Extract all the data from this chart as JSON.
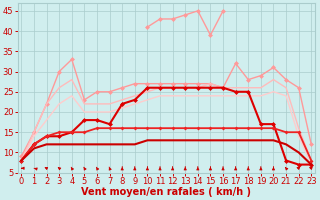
{
  "x": [
    0,
    1,
    2,
    3,
    4,
    5,
    6,
    7,
    8,
    9,
    10,
    11,
    12,
    13,
    14,
    15,
    16,
    17,
    18,
    19,
    20,
    21,
    22,
    23
  ],
  "bg_color": "#d0eeee",
  "grid_color": "#aacccc",
  "text_color": "#cc0000",
  "tick_fontsize": 6,
  "xlabel_fontsize": 7,
  "xlabel": "Vent moyen/en rafales ( km/h )",
  "ylim": [
    5,
    47
  ],
  "xlim": [
    -0.3,
    23.3
  ],
  "yticks": [
    5,
    10,
    15,
    20,
    25,
    30,
    35,
    40,
    45
  ],
  "xticks": [
    0,
    1,
    2,
    3,
    4,
    5,
    6,
    7,
    8,
    9,
    10,
    11,
    12,
    13,
    14,
    15,
    16,
    17,
    18,
    19,
    20,
    21,
    22,
    23
  ],
  "lines": [
    {
      "y": [
        null,
        null,
        null,
        null,
        null,
        null,
        null,
        null,
        null,
        null,
        41,
        43,
        43,
        44,
        45,
        39,
        45,
        null,
        null,
        null,
        null,
        null,
        null,
        null
      ],
      "color": "#ff9999",
      "lw": 1.0,
      "marker": "D",
      "ms": 2.5
    },
    {
      "y": [
        9,
        15,
        22,
        30,
        33,
        23,
        25,
        25,
        26,
        27,
        27,
        27,
        27,
        27,
        27,
        27,
        26,
        32,
        28,
        29,
        31,
        28,
        26,
        12
      ],
      "color": "#ff9999",
      "lw": 1.0,
      "marker": "D",
      "ms": 2.5
    },
    {
      "y": [
        8,
        15,
        22,
        26,
        28,
        22,
        22,
        22,
        23,
        24,
        25,
        26,
        26,
        26,
        26,
        27,
        26,
        26,
        26,
        26,
        28,
        26,
        16,
        8
      ],
      "color": "#ffbbbb",
      "lw": 1.0,
      "marker": null,
      "ms": 0
    },
    {
      "y": [
        8,
        14,
        18,
        22,
        24,
        20,
        20,
        20,
        21,
        22,
        23,
        24,
        24,
        24,
        24,
        24,
        24,
        24,
        24,
        24,
        25,
        24,
        14,
        7
      ],
      "color": "#ffcccc",
      "lw": 1.0,
      "marker": null,
      "ms": 0
    },
    {
      "y": [
        8,
        12,
        14,
        14,
        15,
        18,
        18,
        17,
        22,
        23,
        26,
        26,
        26,
        26,
        26,
        26,
        26,
        25,
        25,
        17,
        17,
        8,
        7,
        7
      ],
      "color": "#dd0000",
      "lw": 1.5,
      "marker": "D",
      "ms": 2.5
    },
    {
      "y": [
        8,
        12,
        14,
        15,
        15,
        15,
        16,
        16,
        16,
        16,
        16,
        16,
        16,
        16,
        16,
        16,
        16,
        16,
        16,
        16,
        16,
        15,
        15,
        8
      ],
      "color": "#ee2222",
      "lw": 1.3,
      "marker": "D",
      "ms": 2.0
    },
    {
      "y": [
        8,
        11,
        12,
        12,
        12,
        12,
        12,
        12,
        12,
        12,
        13,
        13,
        13,
        13,
        13,
        13,
        13,
        13,
        13,
        13,
        13,
        12,
        10,
        7
      ],
      "color": "#cc0000",
      "lw": 1.5,
      "marker": null,
      "ms": 0
    }
  ],
  "arrow_angles_deg": [
    270,
    300,
    315,
    330,
    345,
    345,
    345,
    350,
    0,
    0,
    0,
    0,
    0,
    0,
    0,
    0,
    0,
    0,
    0,
    0,
    0,
    340,
    310,
    310
  ]
}
